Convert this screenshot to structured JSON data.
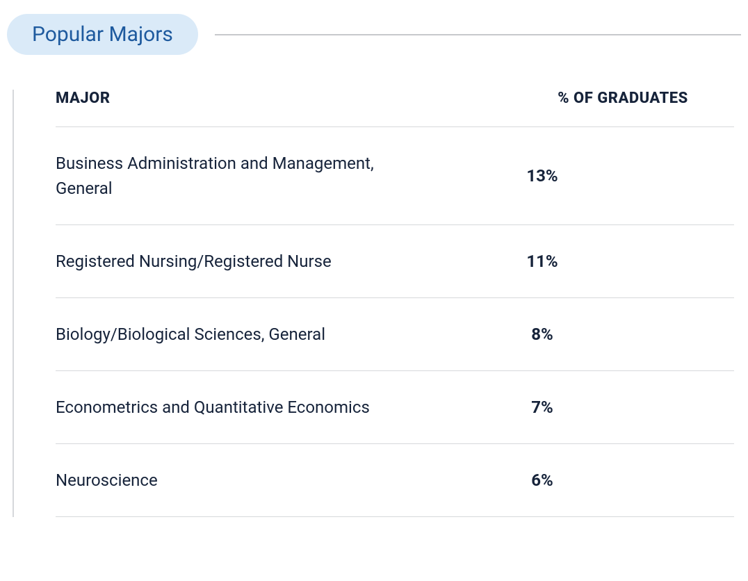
{
  "header": {
    "title": "Popular Majors"
  },
  "table": {
    "type": "table",
    "columns": [
      {
        "label": "MAJOR",
        "align": "left"
      },
      {
        "label": "% OF GRADUATES",
        "align": "center"
      }
    ],
    "rows": [
      {
        "major": "Business Administration and Management, General",
        "percent": "13%"
      },
      {
        "major": "Registered Nursing/Registered Nurse",
        "percent": "11%"
      },
      {
        "major": "Biology/Biological Sciences, General",
        "percent": "8%"
      },
      {
        "major": "Econometrics and Quantitative Economics",
        "percent": "7%"
      },
      {
        "major": "Neuroscience",
        "percent": "6%"
      }
    ],
    "styling": {
      "pill_background": "#daeaf8",
      "pill_text_color": "#1e5a9e",
      "pill_fontsize": 30,
      "divider_color": "#c7c9cc",
      "border_color": "#d6d8db",
      "text_color": "#16233a",
      "header_fontsize": 22,
      "header_fontweight": 800,
      "cell_fontsize": 24,
      "percent_fontweight": 700,
      "major_fontweight": 400,
      "background_color": "#ffffff"
    }
  }
}
